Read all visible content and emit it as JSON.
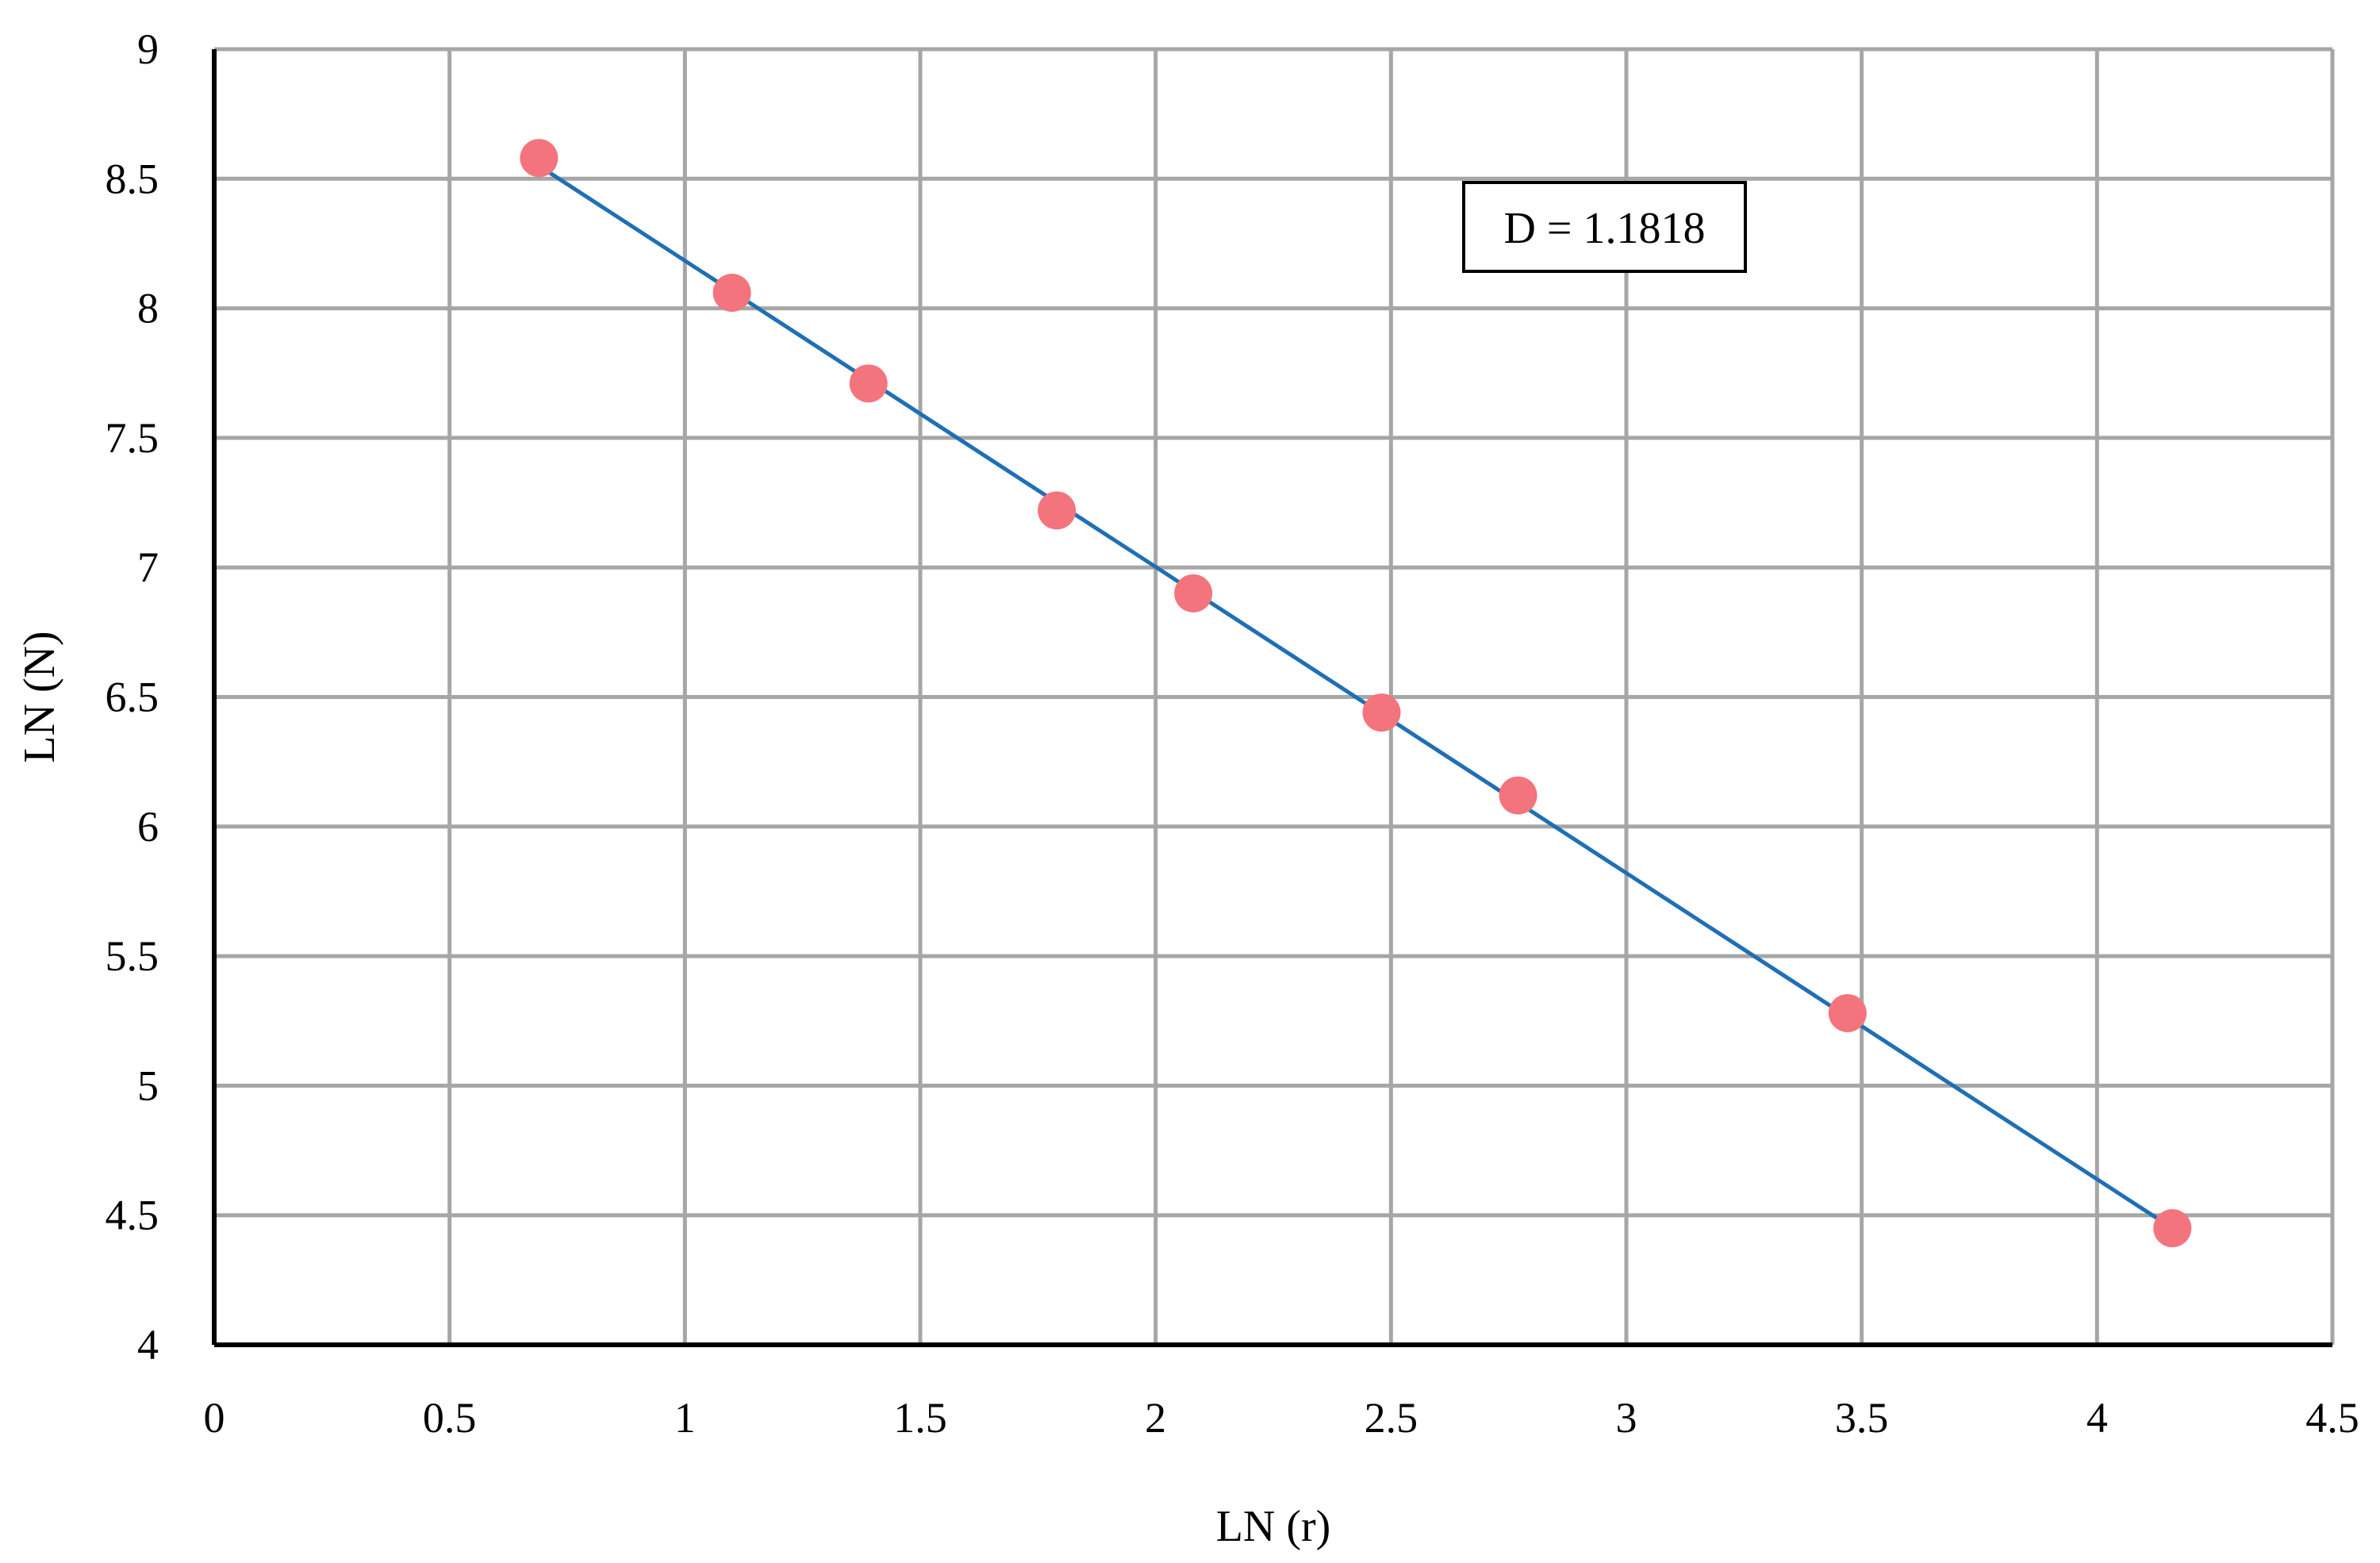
{
  "chart_data": {
    "type": "scatter",
    "title": "",
    "xlabel": "LN (r)",
    "ylabel": "LN (N)",
    "xlim": [
      0,
      4.5
    ],
    "ylim": [
      4,
      9
    ],
    "xticks": [
      0,
      0.5,
      1,
      1.5,
      2,
      2.5,
      3,
      3.5,
      4,
      4.5
    ],
    "yticks": [
      4,
      4.5,
      5,
      5.5,
      6,
      6.5,
      7,
      7.5,
      8,
      8.5,
      9
    ],
    "xtick_labels": [
      "0",
      "0.5",
      "1",
      "1.5",
      "2",
      "2.5",
      "3",
      "3.5",
      "4",
      "4.5"
    ],
    "ytick_labels": [
      "4",
      "4.5",
      "5",
      "5.5",
      "6",
      "6.5",
      "7",
      "7.5",
      "8",
      "8.5",
      "9"
    ],
    "grid": true,
    "legend": "none",
    "series": [
      {
        "points": [
          {
            "x": 0.69,
            "y": 8.58
          },
          {
            "x": 1.1,
            "y": 8.06
          },
          {
            "x": 1.39,
            "y": 7.71
          },
          {
            "x": 1.79,
            "y": 7.22
          },
          {
            "x": 2.08,
            "y": 6.9
          },
          {
            "x": 2.48,
            "y": 6.44
          },
          {
            "x": 2.77,
            "y": 6.12
          },
          {
            "x": 3.47,
            "y": 5.28
          },
          {
            "x": 4.16,
            "y": 4.45
          }
        ],
        "color": "#f4747d"
      }
    ],
    "trendline": {
      "start": {
        "x": 0.69,
        "y": 8.55
      },
      "end": {
        "x": 4.16,
        "y": 4.45
      },
      "color": "#1f6fb5"
    },
    "annotation": {
      "text": "D = 1.1818"
    },
    "colors": {
      "grid": "#a6a6a6",
      "axis": "#000000"
    }
  }
}
